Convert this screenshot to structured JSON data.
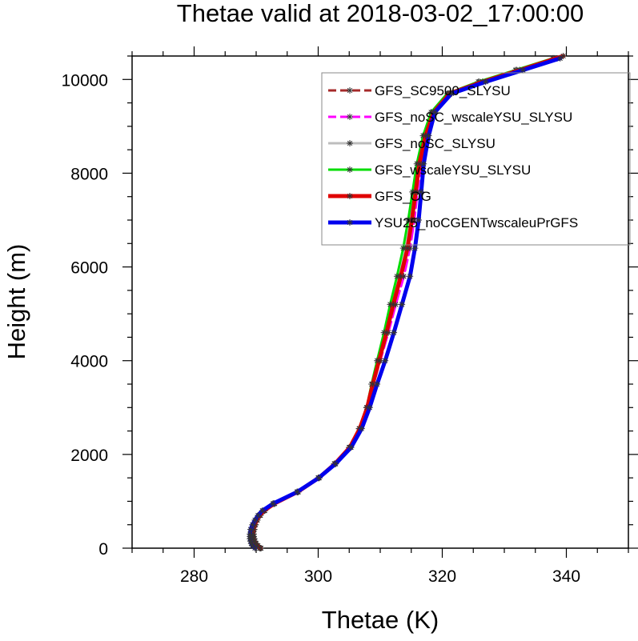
{
  "chart_data": {
    "type": "line",
    "title": "Thetae valid at 2018-03-02_17:00:00",
    "xlabel": "Thetae (K)",
    "ylabel": "Height (m)",
    "xlim": [
      270,
      350
    ],
    "ylim": [
      0,
      10500
    ],
    "x_ticks": [
      280,
      300,
      320,
      340
    ],
    "y_ticks": [
      0,
      2000,
      4000,
      6000,
      8000,
      10000
    ],
    "x_tick_labels": [
      "280",
      "300",
      "320",
      "340"
    ],
    "y_tick_labels": [
      "0",
      "2000",
      "4000",
      "6000",
      "8000",
      "10000"
    ],
    "legend_position": "top-right",
    "series": [
      {
        "name": "GFS_SC9500_SLYSU",
        "color": "#a52a2a",
        "dash": "dash",
        "width": 3,
        "points": [
          [
            290.8,
            0
          ],
          [
            290.3,
            50
          ],
          [
            290.0,
            100
          ],
          [
            289.8,
            150
          ],
          [
            289.7,
            200
          ],
          [
            289.6,
            250
          ],
          [
            289.6,
            300
          ],
          [
            289.7,
            400
          ],
          [
            289.9,
            500
          ],
          [
            290.2,
            600
          ],
          [
            290.7,
            700
          ],
          [
            291.4,
            800
          ],
          [
            293.0,
            950
          ],
          [
            296.8,
            1200
          ],
          [
            300.2,
            1500
          ],
          [
            302.8,
            1800
          ],
          [
            305.2,
            2150
          ],
          [
            306.8,
            2550
          ],
          [
            308.0,
            3000
          ],
          [
            308.8,
            3500
          ],
          [
            309.8,
            4000
          ],
          [
            311.0,
            4600
          ],
          [
            312.0,
            5200
          ],
          [
            313.2,
            5800
          ],
          [
            314.3,
            6400
          ],
          [
            315.0,
            7000
          ],
          [
            315.6,
            7600
          ],
          [
            316.2,
            8200
          ],
          [
            317.2,
            8800
          ],
          [
            318.5,
            9300
          ],
          [
            321.0,
            9700
          ],
          [
            326.0,
            9950
          ],
          [
            332.0,
            10200
          ],
          [
            338.0,
            10450
          ]
        ]
      },
      {
        "name": "GFS_noSC_wscaleYSU_SLYSU",
        "color": "#ff00ff",
        "dash": "dash",
        "width": 3,
        "points": [
          [
            290.7,
            0
          ],
          [
            290.2,
            50
          ],
          [
            289.9,
            100
          ],
          [
            289.7,
            150
          ],
          [
            289.6,
            200
          ],
          [
            289.5,
            250
          ],
          [
            289.5,
            300
          ],
          [
            289.6,
            400
          ],
          [
            289.8,
            500
          ],
          [
            290.1,
            600
          ],
          [
            290.6,
            700
          ],
          [
            291.3,
            800
          ],
          [
            292.9,
            950
          ],
          [
            296.7,
            1200
          ],
          [
            300.1,
            1500
          ],
          [
            302.7,
            1800
          ],
          [
            305.1,
            2150
          ],
          [
            306.7,
            2550
          ],
          [
            307.9,
            3000
          ],
          [
            308.9,
            3500
          ],
          [
            310.0,
            4000
          ],
          [
            311.3,
            4600
          ],
          [
            312.5,
            5200
          ],
          [
            313.8,
            5800
          ],
          [
            314.8,
            6400
          ],
          [
            315.5,
            7000
          ],
          [
            316.0,
            7600
          ],
          [
            316.6,
            8200
          ],
          [
            317.5,
            8800
          ],
          [
            318.7,
            9300
          ],
          [
            321.2,
            9700
          ],
          [
            326.5,
            9950
          ],
          [
            332.5,
            10200
          ],
          [
            338.5,
            10450
          ]
        ]
      },
      {
        "name": "GFS_noSC_SLYSU",
        "color": "#bdbdbd",
        "dash": "solid",
        "width": 3,
        "points": [
          [
            290.6,
            0
          ],
          [
            290.1,
            50
          ],
          [
            289.8,
            100
          ],
          [
            289.6,
            150
          ],
          [
            289.5,
            200
          ],
          [
            289.4,
            250
          ],
          [
            289.4,
            300
          ],
          [
            289.5,
            400
          ],
          [
            289.7,
            500
          ],
          [
            290.0,
            600
          ],
          [
            290.5,
            700
          ],
          [
            291.2,
            800
          ],
          [
            292.8,
            950
          ],
          [
            296.6,
            1200
          ],
          [
            300.0,
            1500
          ],
          [
            302.6,
            1800
          ],
          [
            305.0,
            2150
          ],
          [
            306.6,
            2550
          ],
          [
            307.8,
            3000
          ],
          [
            308.7,
            3500
          ],
          [
            309.7,
            4000
          ],
          [
            310.9,
            4600
          ],
          [
            311.9,
            5200
          ],
          [
            313.1,
            5800
          ],
          [
            314.1,
            6400
          ],
          [
            314.9,
            7000
          ],
          [
            315.5,
            7600
          ],
          [
            316.1,
            8200
          ],
          [
            317.1,
            8800
          ],
          [
            318.4,
            9300
          ],
          [
            321.0,
            9700
          ],
          [
            326.0,
            9950
          ],
          [
            332.0,
            10200
          ],
          [
            338.0,
            10450
          ]
        ]
      },
      {
        "name": "GFS_wscaleYSU_SLYSU",
        "color": "#00dd00",
        "dash": "solid",
        "width": 3,
        "points": [
          [
            290.6,
            0
          ],
          [
            290.1,
            50
          ],
          [
            289.8,
            100
          ],
          [
            289.6,
            150
          ],
          [
            289.5,
            200
          ],
          [
            289.4,
            250
          ],
          [
            289.4,
            300
          ],
          [
            289.5,
            400
          ],
          [
            289.7,
            500
          ],
          [
            290.0,
            600
          ],
          [
            290.5,
            700
          ],
          [
            291.2,
            800
          ],
          [
            292.8,
            950
          ],
          [
            296.6,
            1200
          ],
          [
            300.0,
            1500
          ],
          [
            302.6,
            1800
          ],
          [
            305.0,
            2150
          ],
          [
            306.6,
            2550
          ],
          [
            307.8,
            3000
          ],
          [
            308.6,
            3500
          ],
          [
            309.5,
            4000
          ],
          [
            310.6,
            4600
          ],
          [
            311.6,
            5200
          ],
          [
            312.7,
            5800
          ],
          [
            313.7,
            6400
          ],
          [
            314.5,
            7000
          ],
          [
            315.2,
            7600
          ],
          [
            315.9,
            8200
          ],
          [
            316.9,
            8800
          ],
          [
            318.2,
            9300
          ],
          [
            320.8,
            9700
          ],
          [
            325.8,
            9950
          ],
          [
            331.8,
            10200
          ],
          [
            337.8,
            10450
          ]
        ]
      },
      {
        "name": "GFS_OG",
        "color": "#e00000",
        "dash": "solid",
        "width": 5,
        "points": [
          [
            290.7,
            0
          ],
          [
            290.2,
            50
          ],
          [
            289.9,
            100
          ],
          [
            289.7,
            150
          ],
          [
            289.6,
            200
          ],
          [
            289.5,
            250
          ],
          [
            289.5,
            300
          ],
          [
            289.6,
            400
          ],
          [
            289.8,
            500
          ],
          [
            290.1,
            600
          ],
          [
            290.6,
            700
          ],
          [
            291.3,
            800
          ],
          [
            292.9,
            950
          ],
          [
            296.7,
            1200
          ],
          [
            300.1,
            1500
          ],
          [
            302.7,
            1800
          ],
          [
            305.1,
            2150
          ],
          [
            306.7,
            2550
          ],
          [
            307.9,
            3000
          ],
          [
            308.8,
            3500
          ],
          [
            309.8,
            4000
          ],
          [
            311.0,
            4600
          ],
          [
            312.1,
            5200
          ],
          [
            313.3,
            5800
          ],
          [
            314.4,
            6400
          ],
          [
            315.1,
            7000
          ],
          [
            315.7,
            7600
          ],
          [
            316.3,
            8200
          ],
          [
            317.3,
            8800
          ],
          [
            318.6,
            9300
          ],
          [
            321.2,
            9700
          ],
          [
            326.5,
            9950
          ],
          [
            332.5,
            10200
          ],
          [
            339.5,
            10500
          ]
        ]
      },
      {
        "name": "YSU25_noCGENTwscaleuPrGFS",
        "color": "#0000ee",
        "dash": "solid",
        "width": 5,
        "points": [
          [
            289.8,
            0
          ],
          [
            289.4,
            50
          ],
          [
            289.2,
            100
          ],
          [
            289.1,
            150
          ],
          [
            289.0,
            200
          ],
          [
            289.0,
            250
          ],
          [
            289.0,
            300
          ],
          [
            289.1,
            400
          ],
          [
            289.4,
            500
          ],
          [
            289.8,
            600
          ],
          [
            290.3,
            700
          ],
          [
            291.0,
            800
          ],
          [
            292.7,
            950
          ],
          [
            296.6,
            1200
          ],
          [
            300.1,
            1500
          ],
          [
            302.8,
            1800
          ],
          [
            305.3,
            2150
          ],
          [
            307.0,
            2550
          ],
          [
            308.3,
            3000
          ],
          [
            309.5,
            3500
          ],
          [
            310.8,
            4000
          ],
          [
            312.2,
            4600
          ],
          [
            313.5,
            5200
          ],
          [
            314.8,
            5800
          ],
          [
            315.6,
            6400
          ],
          [
            316.2,
            7000
          ],
          [
            316.6,
            7600
          ],
          [
            317.0,
            8200
          ],
          [
            317.8,
            8800
          ],
          [
            318.8,
            9300
          ],
          [
            321.5,
            9700
          ],
          [
            327.0,
            9950
          ],
          [
            333.0,
            10200
          ],
          [
            339.0,
            10450
          ]
        ]
      }
    ]
  }
}
